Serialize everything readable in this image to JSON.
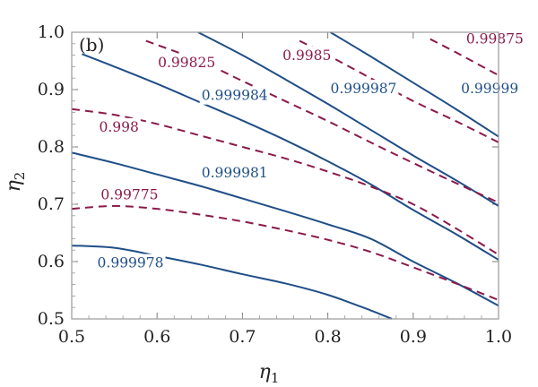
{
  "chart_data": {
    "type": "line",
    "panel_label": "(b)",
    "xlabel": "η",
    "xlabel_sub": "1",
    "ylabel": "η",
    "ylabel_sub": "2",
    "xlim": [
      0.5,
      1.0
    ],
    "ylim": [
      0.5,
      1.0
    ],
    "xticks": [
      "0.5",
      "0.6",
      "0.7",
      "0.8",
      "0.9",
      "1.0"
    ],
    "yticks": [
      "0.5",
      "0.6",
      "0.7",
      "0.8",
      "0.9",
      "1.0"
    ],
    "colors": {
      "solid": "#1f4e87",
      "dashed": "#8b1a4a",
      "frame": "#999999"
    },
    "series": [
      {
        "name": "0.999978",
        "style": "solid",
        "x": [
          0.5,
          0.55,
          0.6,
          0.65,
          0.7,
          0.75,
          0.8,
          0.85,
          0.875
        ],
        "y": [
          0.628,
          0.624,
          0.61,
          0.595,
          0.578,
          0.562,
          0.542,
          0.515,
          0.5
        ],
        "label": "0.999978",
        "label_at": [
          0.53,
          0.596
        ]
      },
      {
        "name": "0.999981",
        "style": "solid",
        "x": [
          0.5,
          0.55,
          0.6,
          0.65,
          0.7,
          0.75,
          0.8,
          0.85,
          0.9,
          0.95,
          1.0
        ],
        "y": [
          0.79,
          0.772,
          0.752,
          0.732,
          0.71,
          0.688,
          0.665,
          0.64,
          0.6,
          0.563,
          0.523
        ],
        "label": "0.999981",
        "label_at": [
          0.652,
          0.753
        ]
      },
      {
        "name": "0.999984",
        "style": "solid",
        "x": [
          0.512,
          0.55,
          0.6,
          0.65,
          0.7,
          0.75,
          0.8,
          0.85,
          0.9,
          0.95,
          1.0
        ],
        "y": [
          0.962,
          0.94,
          0.91,
          0.878,
          0.846,
          0.812,
          0.775,
          0.735,
          0.69,
          0.648,
          0.603
        ],
        "label": "0.999984",
        "label_at": [
          0.652,
          0.888
        ]
      },
      {
        "name": "0.999987",
        "style": "solid",
        "x": [
          0.648,
          0.7,
          0.75,
          0.8,
          0.85,
          0.9,
          0.95,
          1.0
        ],
        "y": [
          1.0,
          0.96,
          0.918,
          0.875,
          0.83,
          0.785,
          0.742,
          0.697
        ],
        "label": "0.999987",
        "label_at": [
          0.803,
          0.9
        ]
      },
      {
        "name": "0.99999",
        "style": "solid",
        "x": [
          0.803,
          0.85,
          0.9,
          0.95,
          1.0
        ],
        "y": [
          1.0,
          0.958,
          0.912,
          0.866,
          0.818
        ],
        "label": "0.99999",
        "label_at": [
          0.956,
          0.9
        ]
      },
      {
        "name": "0.99775",
        "style": "dashed",
        "x": [
          0.5,
          0.55,
          0.6,
          0.65,
          0.7,
          0.75,
          0.8,
          0.85,
          0.9,
          0.95,
          1.0
        ],
        "y": [
          0.692,
          0.697,
          0.692,
          0.682,
          0.67,
          0.655,
          0.638,
          0.617,
          0.59,
          0.562,
          0.533
        ],
        "label": "0.99775",
        "label_at": [
          0.534,
          0.715
        ]
      },
      {
        "name": "0.998",
        "style": "dashed",
        "x": [
          0.5,
          0.55,
          0.6,
          0.65,
          0.7,
          0.75,
          0.8,
          0.85,
          0.9,
          0.95,
          1.0
        ],
        "y": [
          0.866,
          0.856,
          0.84,
          0.82,
          0.8,
          0.78,
          0.757,
          0.731,
          0.7,
          0.658,
          0.612
        ],
        "label": "0.998",
        "label_at": [
          0.532,
          0.833
        ]
      },
      {
        "name": "0.99825",
        "style": "dashed",
        "x": [
          0.587,
          0.65,
          0.7,
          0.75,
          0.8,
          0.85,
          0.9,
          0.95,
          1.0
        ],
        "y": [
          0.985,
          0.95,
          0.915,
          0.88,
          0.845,
          0.808,
          0.772,
          0.737,
          0.703
        ],
        "label": "0.99825",
        "label_at": [
          0.601,
          0.945
        ]
      },
      {
        "name": "0.9985",
        "style": "dashed",
        "x": [
          0.767,
          0.8,
          0.85,
          0.9,
          0.95,
          1.0
        ],
        "y": [
          0.985,
          0.96,
          0.92,
          0.88,
          0.845,
          0.808
        ],
        "label": "0.9985",
        "label_at": [
          0.747,
          0.958
        ]
      },
      {
        "name": "0.99875",
        "style": "dashed",
        "x": [
          0.92,
          0.95,
          0.975,
          1.0
        ],
        "y": [
          0.988,
          0.965,
          0.945,
          0.925
        ],
        "label": "0.99875",
        "label_at": [
          0.962,
          0.987
        ]
      }
    ]
  }
}
